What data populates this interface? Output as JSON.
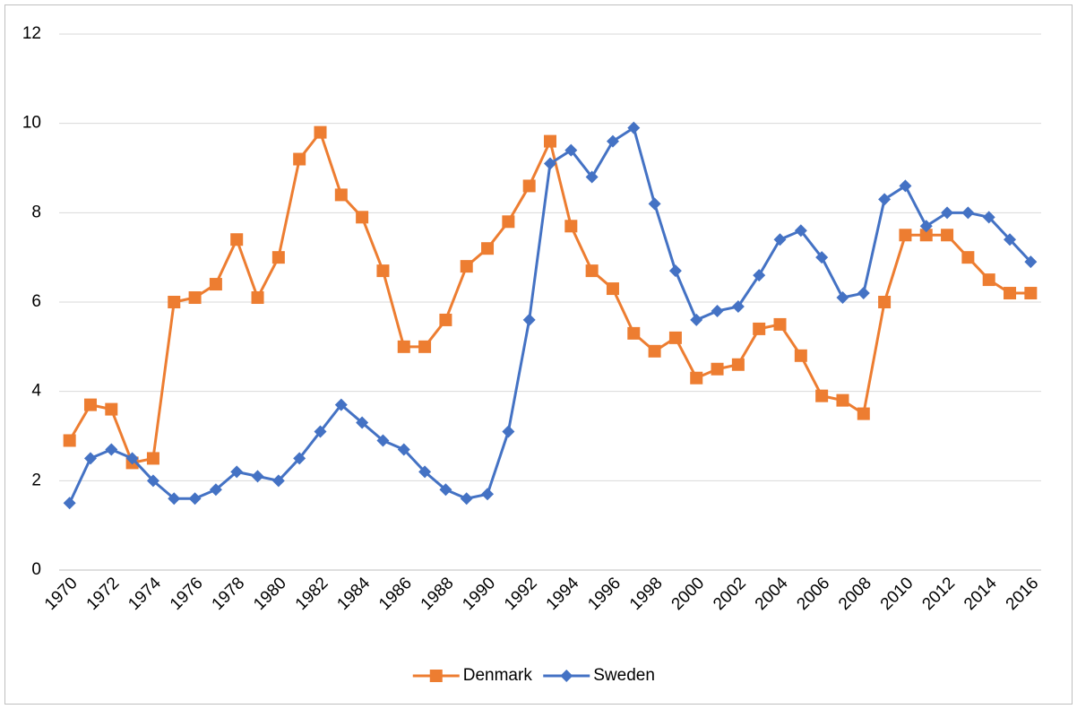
{
  "chart_data": {
    "type": "line",
    "categories": [
      "1970",
      null,
      "1972",
      null,
      "1974",
      null,
      "1976",
      null,
      "1978",
      null,
      "1980",
      null,
      "1982",
      null,
      "1984",
      null,
      "1986",
      null,
      "1988",
      null,
      "1990",
      null,
      "1992",
      null,
      "1994",
      null,
      "1996",
      null,
      "1998",
      null,
      "2000",
      null,
      "2002",
      null,
      "2004",
      null,
      "2006",
      null,
      "2008",
      null,
      "2010",
      null,
      "2012",
      null,
      "2014",
      null,
      "2016"
    ],
    "series": [
      {
        "name": "Denmark",
        "color": "#ed7d31",
        "marker": "square",
        "values": [
          2.9,
          3.7,
          3.6,
          2.4,
          2.5,
          6.0,
          6.1,
          6.4,
          7.4,
          6.1,
          7.0,
          9.2,
          9.8,
          8.4,
          7.9,
          6.7,
          5.0,
          5.0,
          5.6,
          6.8,
          7.2,
          7.8,
          8.6,
          9.6,
          7.7,
          6.7,
          6.3,
          5.3,
          4.9,
          5.2,
          4.3,
          4.5,
          4.6,
          5.4,
          5.5,
          4.8,
          3.9,
          3.8,
          3.5,
          6.0,
          7.5,
          7.5,
          7.5,
          7.0,
          6.5,
          6.2,
          6.2
        ]
      },
      {
        "name": "Sweden",
        "color": "#4472c4",
        "marker": "diamond",
        "values": [
          1.5,
          2.5,
          2.7,
          2.5,
          2.0,
          1.6,
          1.6,
          1.8,
          2.2,
          2.1,
          2.0,
          2.5,
          3.1,
          3.7,
          3.3,
          2.9,
          2.7,
          2.2,
          1.8,
          1.6,
          1.7,
          3.1,
          5.6,
          9.1,
          9.4,
          8.8,
          9.6,
          9.9,
          8.2,
          6.7,
          5.6,
          5.8,
          5.9,
          6.6,
          7.4,
          7.6,
          7.0,
          6.1,
          6.2,
          8.3,
          8.6,
          7.7,
          8.0,
          8.0,
          7.9,
          7.4,
          6.9
        ]
      }
    ],
    "ylim": [
      0,
      12
    ],
    "yticks": [
      0,
      2,
      4,
      6,
      8,
      10,
      12
    ],
    "grid": true,
    "legend": "bottom"
  }
}
